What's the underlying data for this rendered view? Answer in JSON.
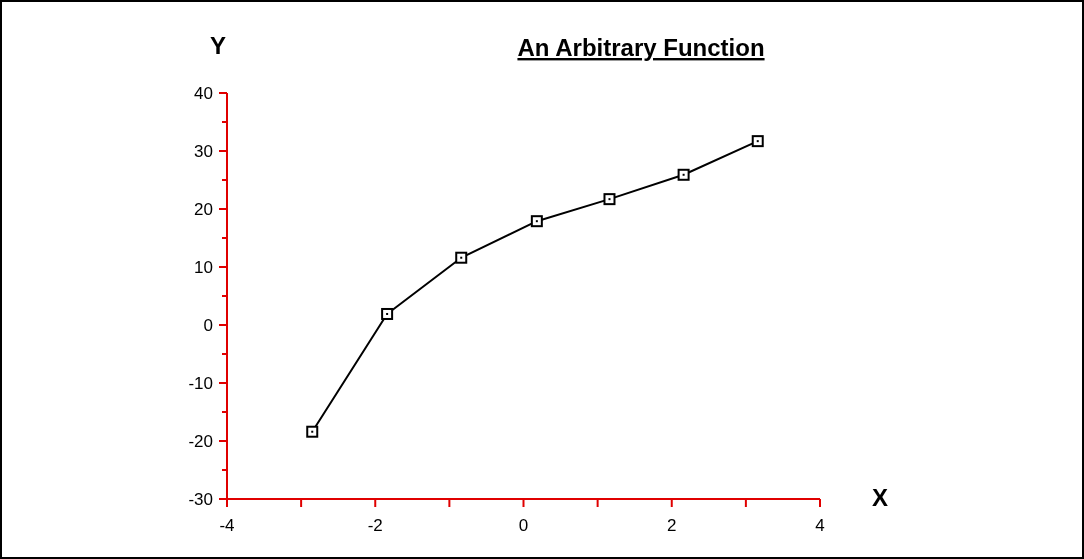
{
  "chart_data": {
    "type": "line",
    "title": "An Arbitrary Function",
    "xlabel": "X",
    "ylabel": "Y",
    "x": [
      -2.85,
      -1.84,
      -0.84,
      0.18,
      1.16,
      2.16,
      3.16
    ],
    "series": [
      {
        "color": "#000000",
        "values": [
          -18.4,
          1.9,
          11.6,
          17.9,
          21.7,
          25.9,
          31.7
        ]
      }
    ],
    "xlim": [
      -4,
      4
    ],
    "ylim": [
      -30,
      40
    ],
    "xticks": [
      -4,
      {
        "value": -3,
        "label": null
      },
      -2,
      {
        "value": -1,
        "label": null
      },
      0,
      {
        "value": 1,
        "label": null
      },
      2,
      {
        "value": 3,
        "label": null
      },
      4
    ],
    "yticks": [
      -30,
      {
        "value": -25,
        "label": null
      },
      -20,
      {
        "value": -15,
        "label": null
      },
      -10,
      {
        "value": -5,
        "label": null
      },
      0,
      {
        "value": 5,
        "label": null
      },
      10,
      {
        "value": 15,
        "label": null
      },
      20,
      {
        "value": 25,
        "label": null
      },
      30,
      {
        "value": 35,
        "label": null
      },
      40
    ],
    "marker": "square",
    "line_style": "solid"
  }
}
